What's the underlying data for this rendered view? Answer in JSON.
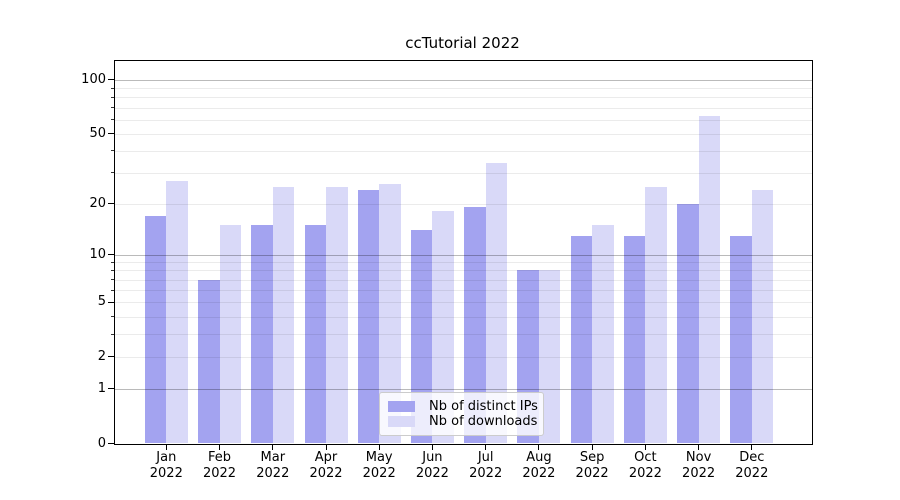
{
  "chart_data": {
    "type": "bar",
    "title": "ccTutorial 2022",
    "categories": [
      "Jan 2022",
      "Feb 2022",
      "Mar 2022",
      "Apr 2022",
      "May 2022",
      "Jun 2022",
      "Jul 2022",
      "Aug 2022",
      "Sep 2022",
      "Oct 2022",
      "Nov 2022",
      "Dec 2022"
    ],
    "series": [
      {
        "name": "Nb of distinct IPs",
        "color": "#a3a3f0",
        "values": [
          17,
          7,
          15,
          15,
          24,
          14,
          19,
          8,
          13,
          13,
          20,
          13
        ]
      },
      {
        "name": "Nb of downloads",
        "color": "#d9d9f8",
        "values": [
          27,
          15,
          25,
          25,
          26,
          18,
          34,
          8,
          15,
          25,
          63,
          24
        ]
      }
    ],
    "xlabel": "",
    "ylabel": "",
    "yscale": "log1p",
    "ylim": [
      0,
      128
    ],
    "ytick_values": [
      0,
      1,
      2,
      5,
      10,
      20,
      50,
      100
    ],
    "ytick_labels": [
      "0",
      "1",
      "2",
      "5",
      "10",
      "20",
      "50",
      "100"
    ],
    "major_grid_values": [
      1,
      10,
      100
    ],
    "minor_grid_values": [
      2,
      3,
      4,
      5,
      6,
      7,
      8,
      9,
      20,
      30,
      40,
      50,
      60,
      70,
      80,
      90
    ],
    "grid": "on",
    "legend_position": "lower center"
  }
}
